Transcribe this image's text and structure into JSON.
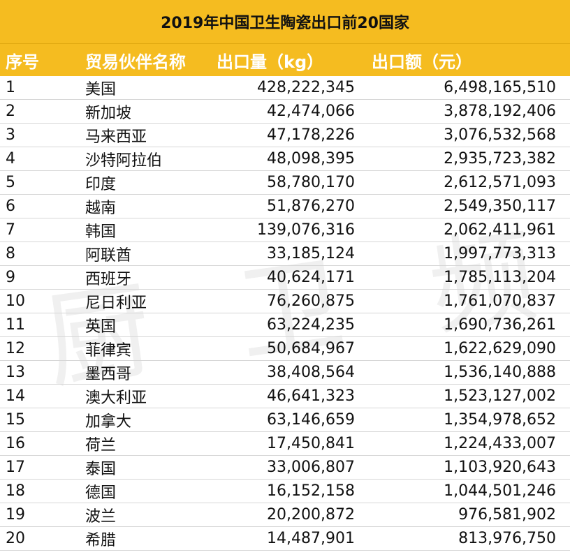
{
  "chart_data": {
    "type": "table",
    "title": "2019年中国卫生陶瓷出口前20国家",
    "columns": [
      "序号",
      "贸易伙伴名称",
      "出口量（kg）",
      "出口额（元）"
    ],
    "rows": [
      {
        "rank": "1",
        "country": "美国",
        "qty": "428,222,345",
        "amount": "6,498,165,510"
      },
      {
        "rank": "2",
        "country": "新加坡",
        "qty": "42,474,066",
        "amount": "3,878,192,406"
      },
      {
        "rank": "3",
        "country": "马来西亚",
        "qty": "47,178,226",
        "amount": "3,076,532,568"
      },
      {
        "rank": "4",
        "country": "沙特阿拉伯",
        "qty": "48,098,395",
        "amount": "2,935,723,382"
      },
      {
        "rank": "5",
        "country": "印度",
        "qty": "58,780,170",
        "amount": "2,612,571,093"
      },
      {
        "rank": "6",
        "country": "越南",
        "qty": "51,876,270",
        "amount": "2,549,350,117"
      },
      {
        "rank": "7",
        "country": "韩国",
        "qty": "139,076,316",
        "amount": "2,062,411,961"
      },
      {
        "rank": "8",
        "country": "阿联酋",
        "qty": "33,185,124",
        "amount": "1,997,773,313"
      },
      {
        "rank": "9",
        "country": "西班牙",
        "qty": "40,624,171",
        "amount": "1,785,113,204"
      },
      {
        "rank": "10",
        "country": "尼日利亚",
        "qty": "76,260,875",
        "amount": "1,761,070,837"
      },
      {
        "rank": "11",
        "country": "英国",
        "qty": "63,224,235",
        "amount": "1,690,736,261"
      },
      {
        "rank": "12",
        "country": "菲律宾",
        "qty": "50,684,967",
        "amount": "1,622,629,090"
      },
      {
        "rank": "13",
        "country": "墨西哥",
        "qty": "38,408,564",
        "amount": "1,536,140,888"
      },
      {
        "rank": "14",
        "country": "澳大利亚",
        "qty": "46,641,323",
        "amount": "1,523,127,002"
      },
      {
        "rank": "15",
        "country": "加拿大",
        "qty": "63,146,659",
        "amount": "1,354,978,652"
      },
      {
        "rank": "16",
        "country": "荷兰",
        "qty": "17,450,841",
        "amount": "1,224,433,007"
      },
      {
        "rank": "17",
        "country": "泰国",
        "qty": "33,006,807",
        "amount": "1,103,920,643"
      },
      {
        "rank": "18",
        "country": "德国",
        "qty": "16,152,158",
        "amount": "1,044,501,246"
      },
      {
        "rank": "19",
        "country": "波兰",
        "qty": "20,200,872",
        "amount": "976,581,902"
      },
      {
        "rank": "20",
        "country": "希腊",
        "qty": "14,487,901",
        "amount": "813,976,750"
      }
    ]
  },
  "colors": {
    "header_bg": "#f5bc20",
    "header_text": "#ffffff",
    "title_text": "#111111"
  }
}
